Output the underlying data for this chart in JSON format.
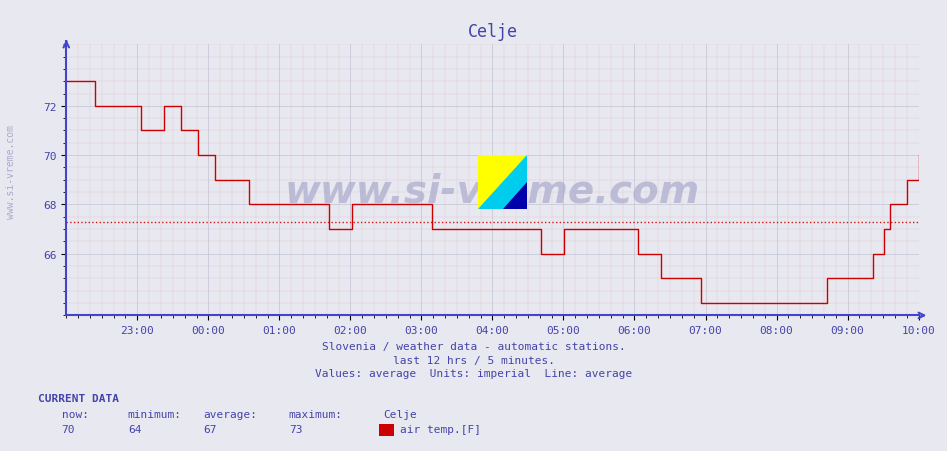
{
  "title": "Celje",
  "background_color": "#e8e8f0",
  "plot_bg_color": "#e8e8f0",
  "line_color": "#cc0000",
  "average_line_color": "#cc0000",
  "average_value": 67.3,
  "xlabel_color": "#4444aa",
  "ylabel_color": "#4444aa",
  "title_color": "#4444aa",
  "grid_color_major": "#bbbbcc",
  "grid_color_minor": "#ddddee",
  "axis_color": "#4444cc",
  "yticks": [
    66,
    68,
    70,
    72
  ],
  "ylim": [
    63.5,
    74.5
  ],
  "xtick_labels": [
    "23:00",
    "00:00",
    "01:00",
    "02:00",
    "03:00",
    "04:00",
    "05:00",
    "06:00",
    "07:00",
    "08:00",
    "09:00",
    "10:00"
  ],
  "subtitle1": "Slovenia / weather data - automatic stations.",
  "subtitle2": "last 12 hrs / 5 minutes.",
  "subtitle3": "Values: average  Units: imperial  Line: average",
  "current_data_label": "CURRENT DATA",
  "now_label": "now:",
  "min_label": "minimum:",
  "avg_label": "average:",
  "max_label": "maximum:",
  "station_label": "Celje",
  "now_val": "70",
  "min_val": "64",
  "avg_val": "67",
  "max_val": "73",
  "series_label": "air temp.[F]",
  "legend_color": "#cc0000",
  "watermark": "www.si-vreme.com",
  "watermark_color": "#aaaacc",
  "side_label": "www.si-vreme.com",
  "temp_values": [
    73,
    73,
    73,
    73,
    73,
    72,
    72,
    72,
    72,
    72,
    72,
    72,
    72,
    71,
    71,
    71,
    71,
    72,
    72,
    72,
    71,
    71,
    71,
    70,
    70,
    70,
    69,
    69,
    69,
    69,
    69,
    69,
    68,
    68,
    68,
    68,
    68,
    68,
    68,
    68,
    68,
    68,
    68,
    68,
    68,
    68,
    67,
    67,
    67,
    67,
    68,
    68,
    68,
    68,
    68,
    68,
    68,
    68,
    68,
    68,
    68,
    68,
    68,
    68,
    67,
    67,
    67,
    67,
    67,
    67,
    67,
    67,
    67,
    67,
    67,
    67,
    67,
    67,
    67,
    67,
    67,
    67,
    67,
    66,
    66,
    66,
    66,
    67,
    67,
    67,
    67,
    67,
    67,
    67,
    67,
    67,
    67,
    67,
    67,
    67,
    66,
    66,
    66,
    66,
    65,
    65,
    65,
    65,
    65,
    65,
    65,
    64,
    64,
    64,
    64,
    64,
    64,
    64,
    64,
    64,
    64,
    64,
    64,
    64,
    64,
    64,
    64,
    64,
    64,
    64,
    64,
    64,
    64,
    65,
    65,
    65,
    65,
    65,
    65,
    65,
    65,
    66,
    66,
    67,
    68,
    68,
    68,
    69,
    69,
    70
  ]
}
